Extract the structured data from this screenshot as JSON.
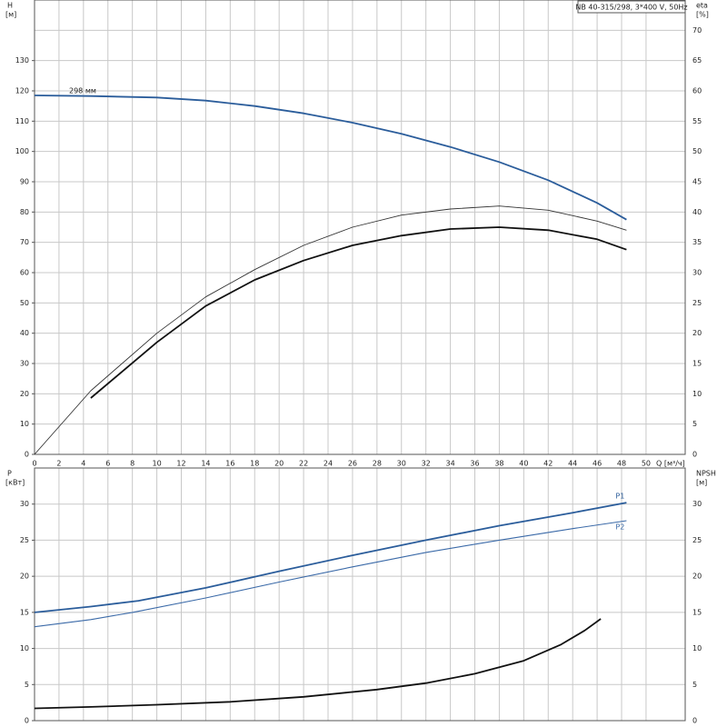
{
  "chart_data": [
    {
      "type": "line",
      "title": "NB 40-315/298, 3*400 V, 50Hz",
      "y_label": "H",
      "y_unit": "[м]",
      "y2_label": "eta",
      "y2_unit": "[%]",
      "x_label": "Q [м³/ч]",
      "xlim": [
        0,
        53.2
      ],
      "xticks": [
        0,
        2,
        4,
        6,
        8,
        10,
        12,
        14,
        16,
        18,
        20,
        22,
        24,
        26,
        28,
        30,
        32,
        34,
        36,
        38,
        40,
        42,
        44,
        46,
        48,
        50
      ],
      "ylim": [
        0,
        150
      ],
      "yticks": [
        0,
        10,
        20,
        30,
        40,
        50,
        60,
        70,
        80,
        90,
        100,
        110,
        120,
        130
      ],
      "y2lim": [
        0,
        75
      ],
      "y2ticks": [
        0,
        5,
        10,
        15,
        20,
        25,
        30,
        35,
        40,
        45,
        50,
        55,
        60,
        65,
        70
      ],
      "grid": true,
      "series": [
        {
          "name": "298 мм",
          "color": "#2b5d9b",
          "x": [
            0,
            4.6,
            10,
            14,
            18,
            22,
            26,
            30,
            34,
            38,
            42,
            46,
            48.4
          ],
          "values": [
            118.5,
            118.3,
            117.8,
            116.8,
            115,
            112.6,
            109.5,
            105.8,
            101.5,
            96.5,
            90.5,
            83,
            77.5
          ]
        },
        {
          "color": "#333333",
          "axis": "y2",
          "x": [
            0,
            4.6,
            10,
            14,
            18,
            22,
            26,
            30,
            34,
            38,
            42,
            46,
            48.4
          ],
          "values": [
            0,
            10.5,
            20,
            26,
            30.5,
            34.5,
            37.5,
            39.5,
            40.5,
            41,
            40.3,
            38.5,
            37
          ]
        },
        {
          "color": "#111111",
          "axis": "y2",
          "x": [
            4.6,
            10,
            14,
            18,
            22,
            26,
            30,
            34,
            38,
            42,
            46,
            48.4
          ],
          "values": [
            9.3,
            18.5,
            24.5,
            28.8,
            32,
            34.5,
            36.1,
            37.2,
            37.5,
            37,
            35.5,
            33.8
          ]
        }
      ]
    },
    {
      "type": "line",
      "y_label": "P",
      "y_unit": "[кВт]",
      "y2_label": "NPSH",
      "y2_unit": "[м]",
      "xlim": [
        0,
        53.2
      ],
      "xticks": [
        0,
        2,
        4,
        6,
        8,
        10,
        12,
        14,
        16,
        18,
        20,
        22,
        24,
        26,
        28,
        30,
        32,
        34,
        36,
        38,
        40,
        42,
        44,
        46,
        48,
        50
      ],
      "ylim": [
        0,
        35
      ],
      "yticks": [
        0,
        5,
        10,
        15,
        20,
        25,
        30
      ],
      "y2lim": [
        0,
        35
      ],
      "y2ticks": [
        0,
        5,
        10,
        15,
        20,
        25,
        30
      ],
      "grid": true,
      "series": [
        {
          "name": "P1",
          "color": "#2b5d9b",
          "x": [
            0,
            4.6,
            8.5,
            14,
            20,
            26,
            32,
            38,
            44,
            48.4
          ],
          "values": [
            15,
            15.8,
            16.6,
            18.4,
            20.7,
            22.9,
            25,
            27,
            28.8,
            30.2
          ]
        },
        {
          "name": "P2",
          "color": "#3b6aa8",
          "x": [
            0,
            4.6,
            8,
            14,
            20,
            26,
            32,
            38,
            44,
            48.4
          ],
          "values": [
            13,
            14,
            15,
            17,
            19.2,
            21.3,
            23.3,
            25,
            26.6,
            27.7
          ]
        },
        {
          "color": "#111111",
          "axis": "y2",
          "x": [
            0,
            4.6,
            10,
            16,
            22,
            28,
            32,
            36,
            40,
            43,
            45,
            46.3
          ],
          "values": [
            1.7,
            1.9,
            2.2,
            2.6,
            3.3,
            4.3,
            5.2,
            6.5,
            8.3,
            10.5,
            12.5,
            14.1
          ]
        }
      ]
    }
  ]
}
